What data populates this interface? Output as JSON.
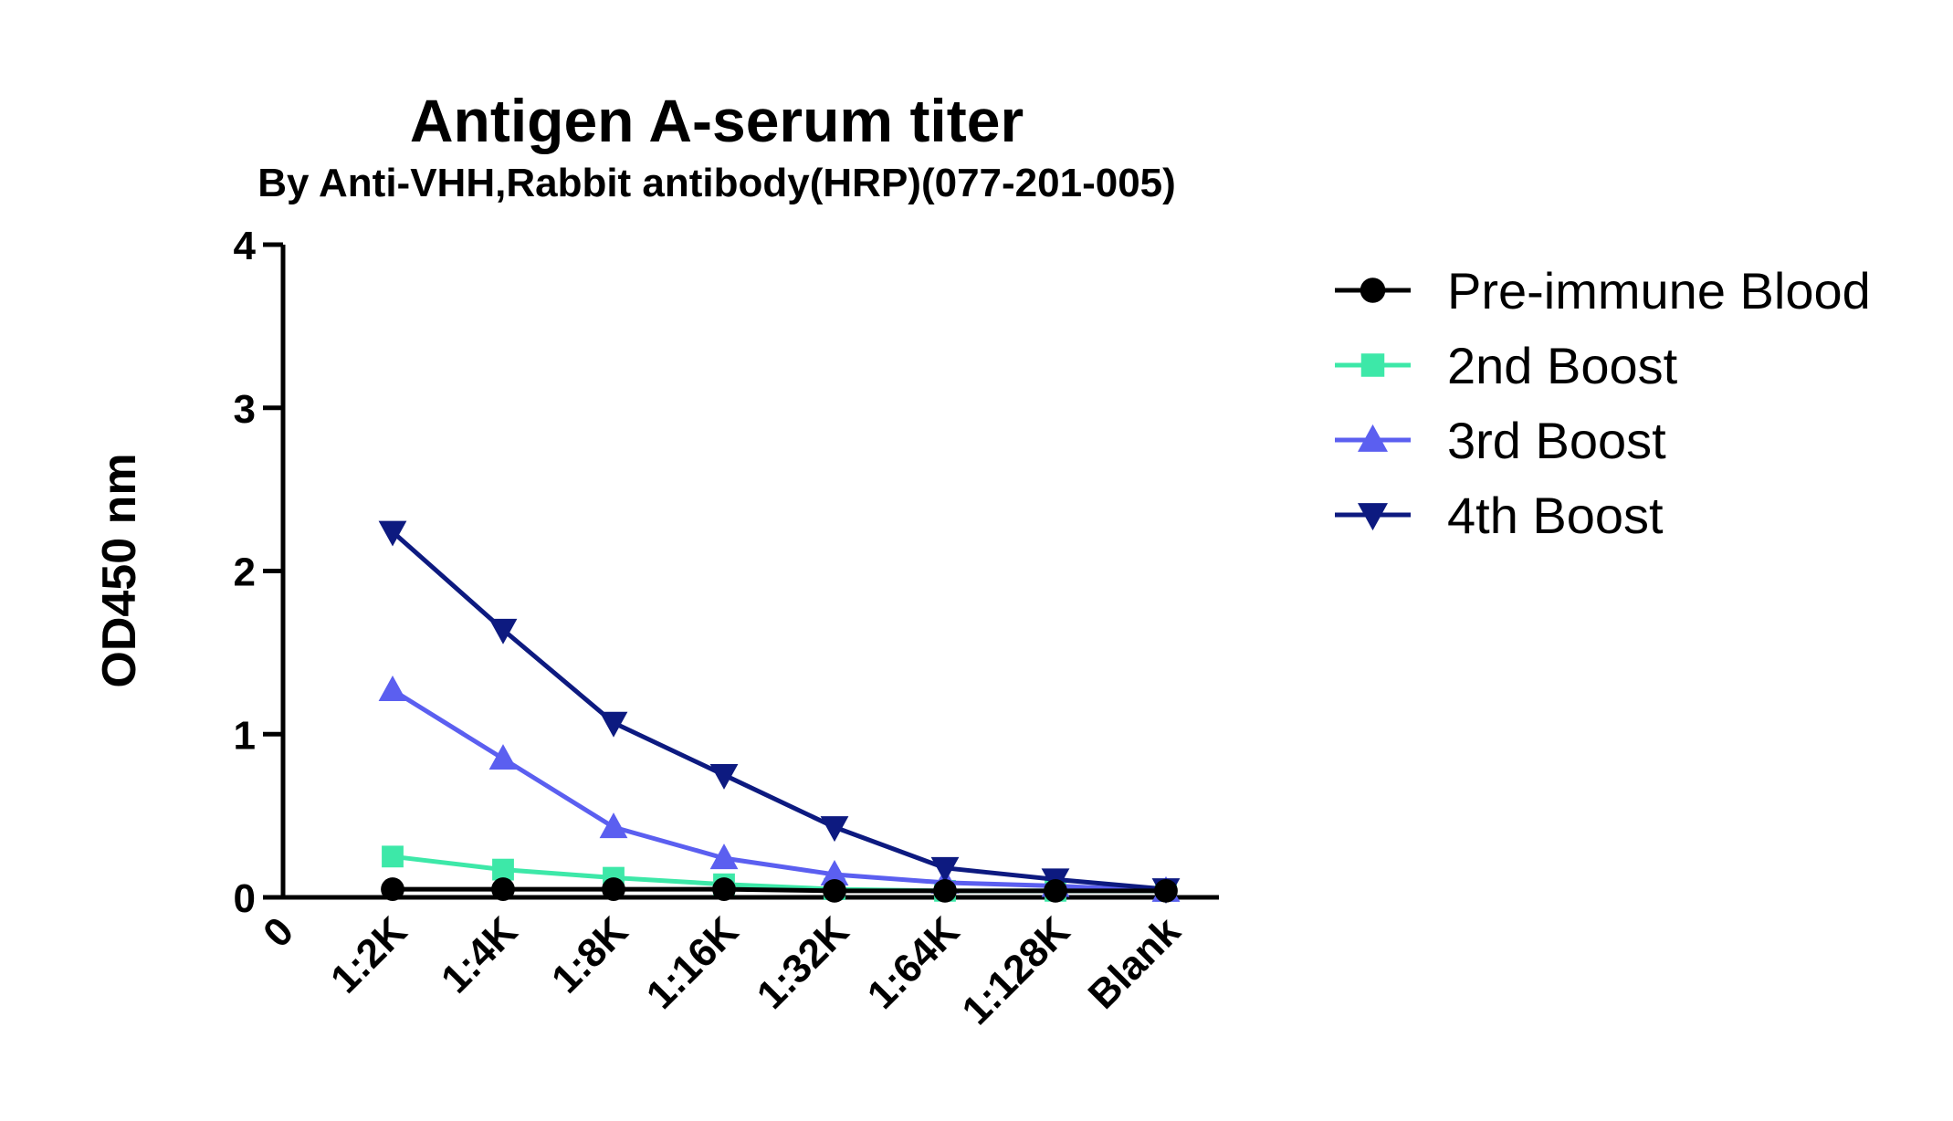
{
  "chart_data": {
    "type": "line",
    "title": "Antigen A-serum titer",
    "subtitle": "By Anti-VHH,Rabbit antibody(HRP)(077-201-005)",
    "xlabel": "",
    "ylabel": "OD450 nm",
    "ylim": [
      0,
      4
    ],
    "yticks": [
      "0",
      "1",
      "2",
      "3",
      "4"
    ],
    "x_origin_label": "0",
    "categories": [
      "1:2K",
      "1:4K",
      "1:8K",
      "1:16K",
      "1:32K",
      "1:64K",
      "1:128K",
      "Blank"
    ],
    "legend_position": "right",
    "grid": false,
    "series": [
      {
        "name": "Pre-immune Blood",
        "marker": "circle",
        "color": "#000000",
        "values": [
          0.05,
          0.05,
          0.05,
          0.05,
          0.04,
          0.04,
          0.04,
          0.04
        ]
      },
      {
        "name": "2nd Boost",
        "marker": "square",
        "color": "#3de8a8",
        "values": [
          0.25,
          0.17,
          0.12,
          0.08,
          0.05,
          0.04,
          0.04,
          0.04
        ]
      },
      {
        "name": "3rd Boost",
        "marker": "triangle-up",
        "color": "#5b5ff0",
        "values": [
          1.27,
          0.85,
          0.43,
          0.24,
          0.14,
          0.09,
          0.07,
          0.04
        ]
      },
      {
        "name": "4th Boost",
        "marker": "triangle-down",
        "color": "#0d1a80",
        "values": [
          2.24,
          1.64,
          1.07,
          0.75,
          0.43,
          0.18,
          0.11,
          0.05
        ]
      }
    ]
  }
}
